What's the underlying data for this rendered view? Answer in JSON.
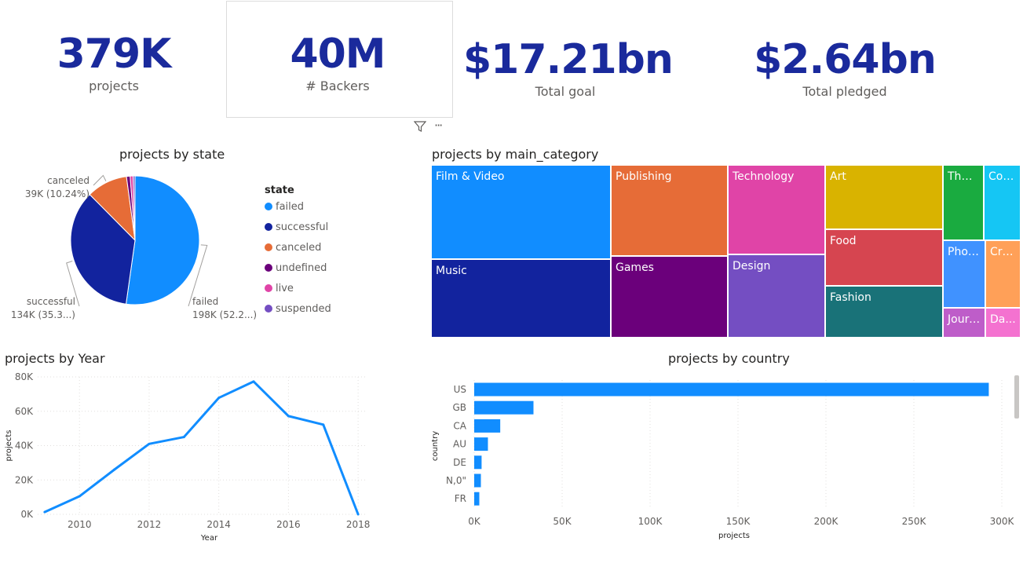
{
  "kpis": {
    "projects": {
      "value": "379K",
      "label": "projects"
    },
    "backers": {
      "value": "40M",
      "label": "# Backers"
    },
    "goal": {
      "value": "$17.21bn",
      "label": "Total goal"
    },
    "pledged": {
      "value": "$2.64bn",
      "label": "Total pledged"
    }
  },
  "toolbar": {
    "filter_icon": "filter-icon",
    "more_icon": "more-options-icon",
    "more_label": "···"
  },
  "colors": {
    "accent": "#1a2a9c",
    "series_blue": "#118DFF"
  },
  "state_chart": {
    "title": "projects by state",
    "legend_title": "state",
    "slices": [
      {
        "name": "failed",
        "value": 198,
        "color": "#118DFF",
        "label1": "failed",
        "label2": "198K (52.2...)"
      },
      {
        "name": "successful",
        "value": 134,
        "color": "#12239E",
        "label1": "successful",
        "label2": "134K (35.3...)"
      },
      {
        "name": "canceled",
        "value": 39,
        "color": "#E66C37",
        "label1": "canceled",
        "label2": "39K (10.24%)"
      },
      {
        "name": "undefined",
        "value": 3.5,
        "color": "#6B007B",
        "label1": "",
        "label2": ""
      },
      {
        "name": "live",
        "value": 2.8,
        "color": "#E044A7",
        "label1": "",
        "label2": ""
      },
      {
        "name": "suspended",
        "value": 1.8,
        "color": "#744EC2",
        "label1": "",
        "label2": ""
      }
    ]
  },
  "category_chart": {
    "title": "projects by main_category",
    "cells": [
      {
        "label": "Film & Video",
        "color": "#118DFF"
      },
      {
        "label": "Music",
        "color": "#12239E"
      },
      {
        "label": "Publishing",
        "color": "#E66C37"
      },
      {
        "label": "Games",
        "color": "#6B007B"
      },
      {
        "label": "Technology",
        "color": "#E044A7"
      },
      {
        "label": "Design",
        "color": "#744EC2"
      },
      {
        "label": "Art",
        "color": "#D9B300"
      },
      {
        "label": "Food",
        "color": "#D64550"
      },
      {
        "label": "Fashion",
        "color": "#197278"
      },
      {
        "label": "Thea...",
        "color": "#1AAB40"
      },
      {
        "label": "Com...",
        "color": "#15C6F4"
      },
      {
        "label": "Phot...",
        "color": "#4092FF"
      },
      {
        "label": "Cra...",
        "color": "#FFA058"
      },
      {
        "label": "Journ...",
        "color": "#BE5DC9"
      },
      {
        "label": "Da...",
        "color": "#F472D0"
      }
    ]
  },
  "chart_data": [
    {
      "type": "line",
      "title": "projects by Year",
      "xlabel": "Year",
      "ylabel": "projects",
      "x": [
        2009,
        2010,
        2011,
        2012,
        2013,
        2014,
        2015,
        2016,
        2017,
        2018
      ],
      "series": [
        {
          "values": [
            1300,
            10500,
            26000,
            41000,
            45000,
            67800,
            77300,
            57200,
            52200,
            0
          ]
        }
      ],
      "ylim": [
        0,
        80000
      ],
      "yticks": [
        "0K",
        "20K",
        "40K",
        "60K",
        "80K"
      ],
      "xticks": [
        "2010",
        "2012",
        "2014",
        "2016",
        "2018"
      ],
      "grid": true
    },
    {
      "type": "bar",
      "orientation": "horizontal",
      "title": "projects by country",
      "xlabel": "projects",
      "ylabel": "country",
      "categories": [
        "US",
        "GB",
        "CA",
        "AU",
        "DE",
        "N,0\"",
        "FR"
      ],
      "values": [
        292600,
        33700,
        14800,
        7800,
        4200,
        3800,
        2900
      ],
      "xlim": [
        0,
        300000
      ],
      "xticks": [
        "0K",
        "50K",
        "100K",
        "150K",
        "200K",
        "250K",
        "300K"
      ],
      "grid": true
    }
  ]
}
